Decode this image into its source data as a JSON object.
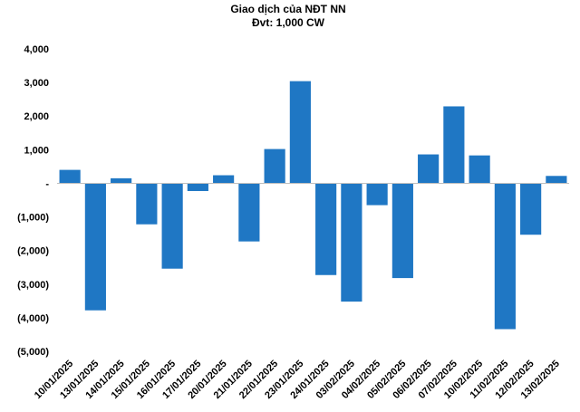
{
  "chart_data": {
    "type": "bar",
    "title": "Giao dịch của NĐT NN",
    "subtitle": "Đvt: 1,000 CW",
    "xlabel": "",
    "ylabel": "",
    "ylim": [
      -5000,
      4000
    ],
    "grid": false,
    "legend": "none",
    "y_ticks": [
      4000,
      3000,
      2000,
      1000,
      0,
      -1000,
      -2000,
      -3000,
      -4000,
      -5000
    ],
    "y_tick_labels": [
      "4,000",
      "3,000",
      "2,000",
      "1,000",
      "-",
      "(1,000)",
      "(2,000)",
      "(3,000)",
      "(4,000)",
      "(5,000)"
    ],
    "categories": [
      "10/01/2025",
      "13/01/2025",
      "14/01/2025",
      "15/01/2025",
      "16/01/2025",
      "17/01/2025",
      "20/01/2025",
      "21/01/2025",
      "22/01/2025",
      "23/01/2025",
      "24/01/2025",
      "03/02/2025",
      "04/02/2025",
      "05/02/2025",
      "06/02/2025",
      "07/02/2025",
      "10/02/2025",
      "11/02/2025",
      "12/02/2025",
      "13/02/2025"
    ],
    "values": [
      400,
      -3780,
      150,
      -1220,
      -2540,
      -230,
      240,
      -1730,
      1020,
      3040,
      -2730,
      -3520,
      -650,
      -2820,
      860,
      2290,
      830,
      -4340,
      -1530,
      220
    ],
    "bar_color": "#1f77c4"
  }
}
